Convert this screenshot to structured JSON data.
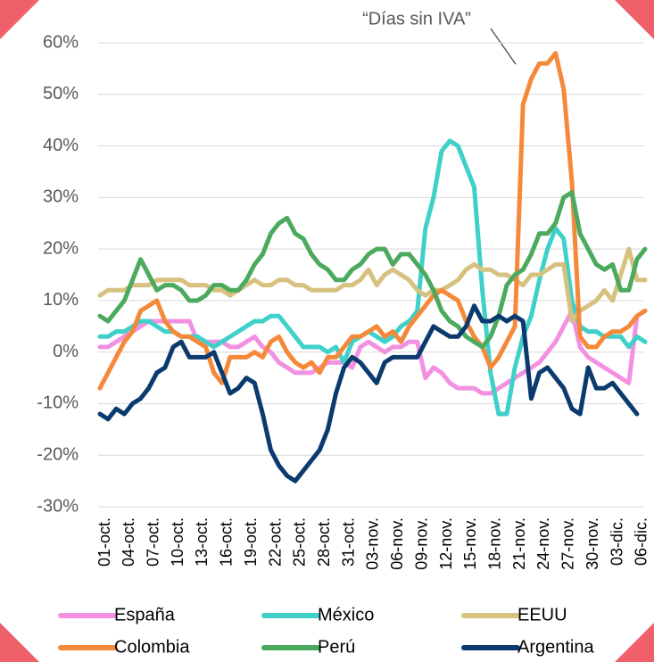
{
  "chart_data": {
    "type": "line",
    "annotation": "“Días sin IVA”",
    "categories": [
      "01-oct.",
      null,
      null,
      "04-oct.",
      null,
      null,
      "07-oct.",
      null,
      null,
      "10-oct.",
      null,
      null,
      "13-oct.",
      null,
      null,
      "16-oct.",
      null,
      null,
      "19-oct.",
      null,
      null,
      "22-oct.",
      null,
      null,
      "25-oct.",
      null,
      null,
      "28-oct.",
      null,
      null,
      "31-oct.",
      null,
      null,
      "03-nov.",
      null,
      null,
      "06-nov.",
      null,
      null,
      "09-nov.",
      null,
      null,
      "12-nov.",
      null,
      null,
      "15-nov.",
      null,
      null,
      "18-nov.",
      null,
      null,
      "21-nov.",
      null,
      null,
      "24-nov.",
      null,
      null,
      "27-nov.",
      null,
      null,
      "30-nov.",
      null,
      null,
      "03-dic.",
      null,
      null,
      "06-dic.",
      null
    ],
    "ylim": [
      -30,
      60
    ],
    "yticks": [
      {
        "value": -30,
        "label": "-30%"
      },
      {
        "value": -20,
        "label": "-20%"
      },
      {
        "value": -10,
        "label": "-10%"
      },
      {
        "value": 0,
        "label": "0%"
      },
      {
        "value": 10,
        "label": "10%"
      },
      {
        "value": 20,
        "label": "20%"
      },
      {
        "value": 30,
        "label": "30%"
      },
      {
        "value": 40,
        "label": "40%"
      },
      {
        "value": 50,
        "label": "50%"
      },
      {
        "value": 60,
        "label": "60%"
      }
    ],
    "grid": true,
    "legend": "bottom",
    "series": [
      {
        "name": "España",
        "color": "#f291e2",
        "values": [
          1,
          1,
          2,
          3,
          4,
          5,
          6,
          6,
          6,
          6,
          6,
          6,
          2,
          2,
          2,
          2,
          1,
          1,
          2,
          3,
          1,
          0,
          -2,
          -3,
          -4,
          -4,
          -4,
          -3,
          -2,
          -2,
          -2,
          -3,
          1,
          2,
          1,
          0,
          1,
          1,
          2,
          2,
          -5,
          -3,
          -4,
          -6,
          -7,
          -7,
          -7,
          -8,
          -8,
          -7,
          -6,
          -5,
          -4,
          -3,
          -2,
          0,
          2,
          5,
          8,
          1,
          -1,
          -2,
          -3,
          -4,
          -5,
          -6,
          7,
          8
        ]
      },
      {
        "name": "México",
        "color": "#3fd0c9",
        "values": [
          3,
          3,
          4,
          4,
          5,
          6,
          6,
          5,
          4,
          4,
          3,
          3,
          3,
          2,
          1,
          2,
          3,
          4,
          5,
          6,
          6,
          7,
          7,
          5,
          3,
          1,
          1,
          1,
          0,
          1,
          -2,
          2,
          3,
          4,
          3,
          2,
          3,
          5,
          6,
          8,
          24,
          30,
          39,
          41,
          40,
          36,
          32,
          12,
          -4,
          -12,
          -12,
          -3,
          3,
          7,
          14,
          20,
          24,
          22,
          10,
          5,
          4,
          4,
          3,
          3,
          3,
          1,
          3,
          2
        ]
      },
      {
        "name": "EEUU",
        "color": "#d6c17f",
        "values": [
          11,
          12,
          12,
          12,
          13,
          13,
          13,
          14,
          14,
          14,
          14,
          13,
          13,
          13,
          12,
          12,
          11,
          12,
          13,
          14,
          13,
          13,
          14,
          14,
          13,
          13,
          12,
          12,
          12,
          12,
          13,
          13,
          14,
          16,
          13,
          15,
          16,
          15,
          14,
          12,
          11,
          12,
          12,
          13,
          14,
          16,
          17,
          16,
          16,
          15,
          15,
          14,
          13,
          15,
          15,
          16,
          17,
          17,
          6,
          8,
          9,
          10,
          12,
          10,
          15,
          20,
          14,
          14
        ]
      },
      {
        "name": "Colombia",
        "color": "#f5893a",
        "values": [
          -7,
          -4,
          -1,
          2,
          4,
          8,
          9,
          10,
          6,
          4,
          3,
          3,
          2,
          1,
          -4,
          -6,
          -1,
          -1,
          -1,
          0,
          -1,
          2,
          3,
          0,
          -2,
          -3,
          -2,
          -4,
          -1,
          -1,
          1,
          3,
          3,
          4,
          5,
          3,
          4,
          2,
          5,
          7,
          9,
          11,
          12,
          11,
          10,
          6,
          3,
          1,
          -3,
          -1,
          2,
          5,
          48,
          53,
          56,
          56,
          58,
          51,
          33,
          3,
          1,
          1,
          3,
          4,
          4,
          5,
          7,
          8
        ]
      },
      {
        "name": "Perú",
        "color": "#4caa5e",
        "values": [
          7,
          6,
          8,
          10,
          14,
          18,
          15,
          12,
          13,
          13,
          12,
          10,
          10,
          11,
          13,
          13,
          12,
          12,
          14,
          17,
          19,
          23,
          25,
          26,
          23,
          22,
          19,
          17,
          16,
          14,
          14,
          16,
          17,
          19,
          20,
          20,
          17,
          19,
          19,
          17,
          15,
          12,
          8,
          6,
          5,
          3,
          2,
          1,
          3,
          7,
          13,
          15,
          16,
          19,
          23,
          23,
          25,
          30,
          31,
          23,
          20,
          17,
          16,
          17,
          12,
          12,
          18,
          20
        ]
      },
      {
        "name": "Argentina",
        "color": "#0b3a6e",
        "values": [
          -12,
          -13,
          -11,
          -12,
          -10,
          -9,
          -7,
          -4,
          -3,
          1,
          2,
          -1,
          -1,
          -1,
          0,
          -4,
          -8,
          -7,
          -5,
          -6,
          -12,
          -19,
          -22,
          -24,
          -25,
          -23,
          -21,
          -19,
          -15,
          -8,
          -3,
          -1,
          -2,
          -4,
          -6,
          -2,
          -1,
          -1,
          -1,
          -1,
          2,
          5,
          4,
          3,
          3,
          5,
          9,
          6,
          6,
          7,
          6,
          7,
          6,
          -9,
          -4,
          -3,
          -5,
          -7,
          -11,
          -12,
          -3,
          -7,
          -7,
          -6,
          -8,
          -10,
          -12,
          null
        ]
      }
    ]
  }
}
